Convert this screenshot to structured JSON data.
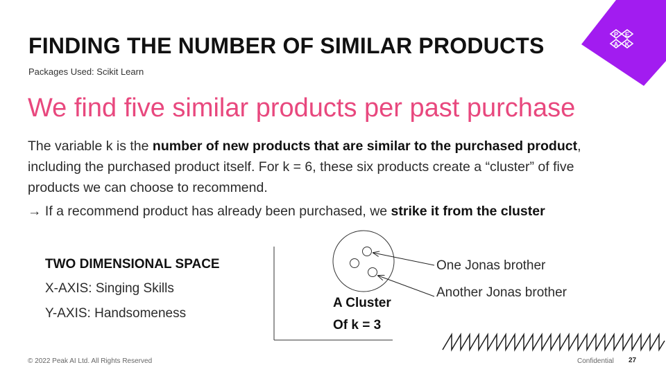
{
  "slide": {
    "title": "FINDING THE NUMBER OF SIMILAR PRODUCTS",
    "subtitle": "Packages Used: Scikit Learn",
    "headline": "We find five similar products per past purchase",
    "paragraph": {
      "part1": "The variable k is the ",
      "bold1": "number of new products that are similar to the purchased product",
      "part2": ", including the purchased product itself. For k = 6, these six products create a “cluster” of five products we can choose to recommend."
    },
    "note": {
      "part1": "→ If a recommend product has already been purchased, we ",
      "bold1": "strike it from the cluster"
    }
  },
  "diagram": {
    "space_title": "TWO DIMENSIONAL SPACE",
    "x_axis_label": "X-AXIS: Singing Skills",
    "y_axis_label": "Y-AXIS: Handsomeness",
    "cluster_line1": "A Cluster",
    "cluster_line2": "Of k = 3",
    "annotation_1": "One Jonas brother",
    "annotation_2": "Another Jonas brother"
  },
  "logo": {
    "letters": [
      "P",
      "E",
      "A",
      "K"
    ],
    "color": "#a21cf0"
  },
  "footer": {
    "copyright": "© 2022 Peak AI Ltd. All Rights Reserved",
    "confidential": "Confidential",
    "page_number": "27"
  },
  "colors": {
    "accent": "#e8487e",
    "brand": "#a21cf0"
  }
}
